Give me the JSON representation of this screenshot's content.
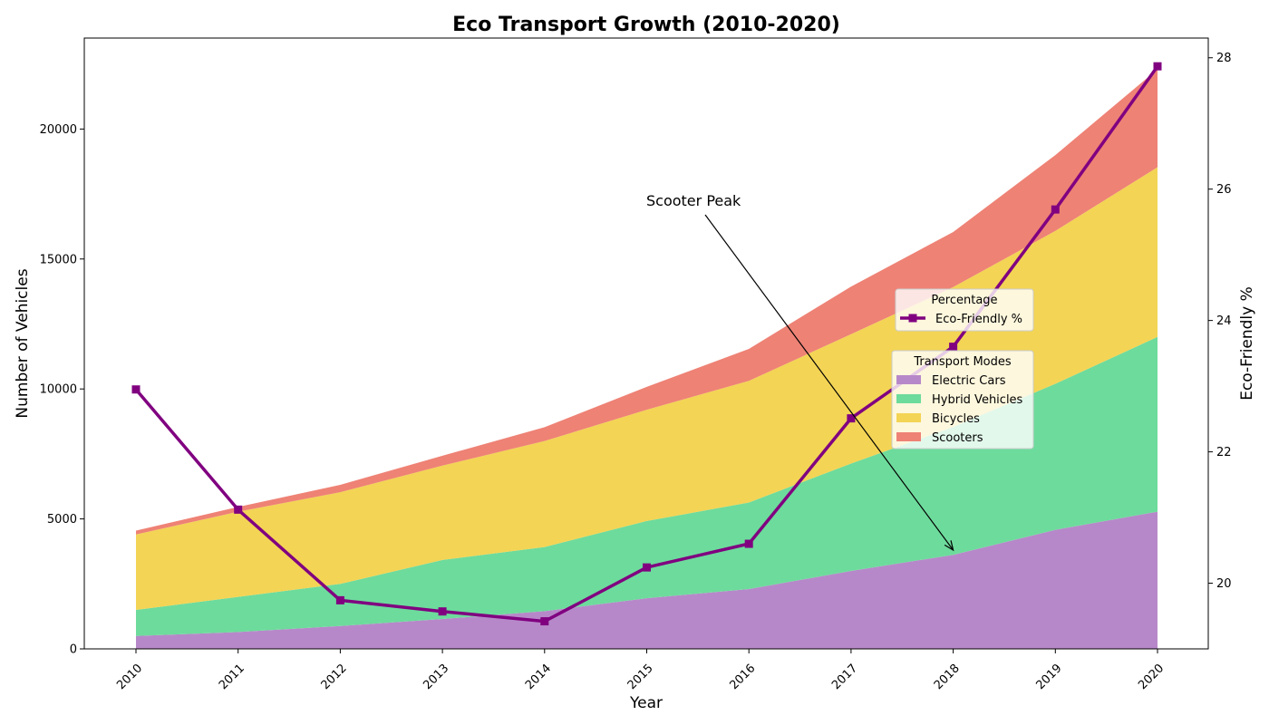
{
  "chart_data": {
    "type": "area",
    "title": "Eco Transport Growth (2010-2020)",
    "xlabel": "Year",
    "ylabel": "Number of Vehicles",
    "y2label": "Eco-Friendly %",
    "x": [
      "2010",
      "2011",
      "2012",
      "2013",
      "2014",
      "2015",
      "2016",
      "2017",
      "2018",
      "2019",
      "2020"
    ],
    "ylim": [
      0,
      23500
    ],
    "yticks": [
      0,
      5000,
      10000,
      15000,
      20000
    ],
    "y2lim": [
      19.0,
      28.3
    ],
    "y2ticks": [
      20,
      22,
      24,
      26,
      28
    ],
    "stacked": true,
    "series": [
      {
        "name": "Electric Cars",
        "color": "#b788c9",
        "values": [
          500,
          650,
          880,
          1150,
          1450,
          1950,
          2300,
          3000,
          3620,
          4580,
          5280
        ]
      },
      {
        "name": "Hybrid Vehicles",
        "color": "#6ddb9c",
        "values": [
          1000,
          1350,
          1620,
          2270,
          2470,
          2970,
          3330,
          4130,
          4920,
          5620,
          6720
        ]
      },
      {
        "name": "Bicycles",
        "color": "#f3d455",
        "values": [
          2900,
          3280,
          3530,
          3630,
          4080,
          4280,
          4680,
          4980,
          5380,
          5880,
          6530
        ]
      },
      {
        "name": "Scooters",
        "color": "#ee8275",
        "values": [
          150,
          180,
          280,
          380,
          530,
          880,
          1230,
          1830,
          2120,
          2920,
          3770
        ]
      }
    ],
    "line_series": {
      "name": "Eco-Friendly %",
      "color": "#800080",
      "values": [
        22.95,
        21.12,
        19.74,
        19.57,
        19.42,
        20.24,
        20.6,
        22.51,
        23.6,
        25.69,
        27.87
      ]
    },
    "legend_areas": {
      "title": "Transport Modes",
      "position": "center-right"
    },
    "legend_line": {
      "title": "Percentage",
      "position": "center-right"
    },
    "annotation": {
      "text": "Scooter Peak",
      "x": "2018",
      "y": 3800
    },
    "grid": false
  }
}
